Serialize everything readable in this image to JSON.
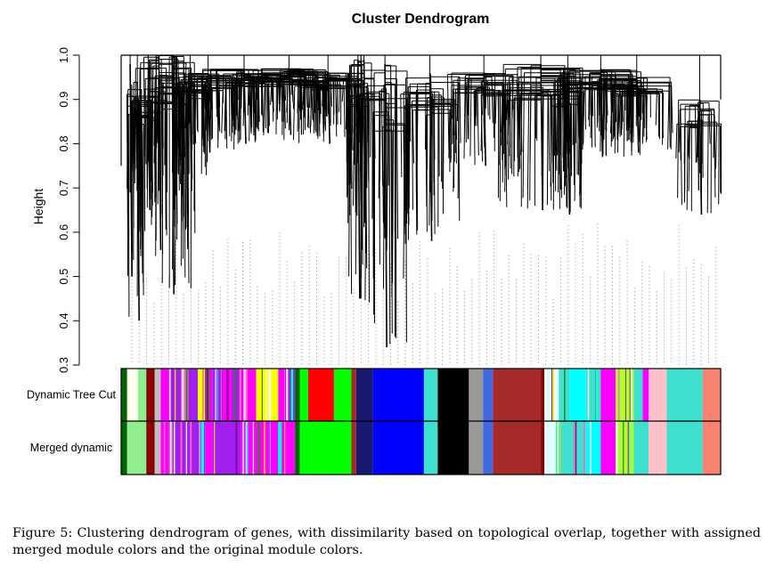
{
  "chart_data": {
    "type": "dendrogram",
    "title": "Cluster Dendrogram",
    "ylabel": "Height",
    "ylim": [
      0.3,
      1.0
    ],
    "yticks": [
      "0.3",
      "0.4",
      "0.5",
      "0.6",
      "0.7",
      "0.8",
      "0.9",
      "1.0"
    ],
    "branches": [
      {
        "center": 0.015,
        "top": 0.98,
        "bottom": 0.5,
        "fan": 0
      },
      {
        "center": 0.027,
        "top": 0.94,
        "bottom": 0.4,
        "fan": 1
      },
      {
        "center": 0.045,
        "top": 0.92,
        "bottom": 0.65,
        "fan": 2
      },
      {
        "center": 0.063,
        "top": 1.0,
        "bottom": 0.56,
        "fan": 3
      },
      {
        "center": 0.085,
        "top": 1.0,
        "bottom": 0.46,
        "fan": 3
      },
      {
        "center": 0.115,
        "top": 0.96,
        "bottom": 0.72,
        "fan": 2
      },
      {
        "center": 0.145,
        "top": 0.96,
        "bottom": 0.78,
        "fan": 4
      },
      {
        "center": 0.205,
        "top": 0.97,
        "bottom": 0.8,
        "fan": 6
      },
      {
        "center": 0.28,
        "top": 0.97,
        "bottom": 0.82,
        "fan": 6
      },
      {
        "center": 0.345,
        "top": 0.96,
        "bottom": 0.8,
        "fan": 5
      },
      {
        "center": 0.395,
        "top": 0.99,
        "bottom": 0.45,
        "fan": 1
      },
      {
        "center": 0.44,
        "top": 0.98,
        "bottom": 0.34,
        "fan": 3
      },
      {
        "center": 0.515,
        "top": 0.96,
        "bottom": 0.58,
        "fan": 4
      },
      {
        "center": 0.605,
        "top": 0.96,
        "bottom": 0.75,
        "fan": 5
      },
      {
        "center": 0.7,
        "top": 0.98,
        "bottom": 0.65,
        "fan": 6
      },
      {
        "center": 0.8,
        "top": 0.97,
        "bottom": 0.77,
        "fan": 6
      },
      {
        "center": 0.86,
        "top": 0.95,
        "bottom": 0.78,
        "fan": 5
      },
      {
        "center": 0.965,
        "top": 0.9,
        "bottom": 0.64,
        "fan": 3
      },
      {
        "center": 0.745,
        "top": 0.96,
        "bottom": 0.64,
        "fan": 2
      },
      {
        "center": 0.405,
        "top": 0.99,
        "bottom": 0.62,
        "fan": 2
      }
    ],
    "color_rows": [
      {
        "label": "Dynamic Tree Cut",
        "segments": [
          [
            0.0,
            0.01,
            "#006400"
          ],
          [
            0.01,
            0.028,
            "#fffff0"
          ],
          [
            0.028,
            0.042,
            "#90ee90"
          ],
          [
            0.042,
            0.056,
            "#8b0000"
          ],
          [
            0.056,
            0.066,
            "#bebebe"
          ],
          [
            0.066,
            0.08,
            "#ff00ff"
          ],
          [
            0.08,
            0.1,
            "#a020f0"
          ],
          [
            0.1,
            0.112,
            "#ff69b4"
          ],
          [
            0.112,
            0.128,
            "#a020f0"
          ],
          [
            0.128,
            0.14,
            "#ffff00"
          ],
          [
            0.14,
            0.152,
            "#ff00ff"
          ],
          [
            0.152,
            0.17,
            "#a020f0"
          ],
          [
            0.17,
            0.185,
            "#ff00ff"
          ],
          [
            0.185,
            0.2,
            "#a020f0"
          ],
          [
            0.2,
            0.225,
            "#ff00ff"
          ],
          [
            0.225,
            0.262,
            "#ffff00"
          ],
          [
            0.262,
            0.272,
            "#ff00ff"
          ],
          [
            0.272,
            0.29,
            "#a020f0"
          ],
          [
            0.29,
            0.298,
            "#006400"
          ],
          [
            0.298,
            0.312,
            "#00ff00"
          ],
          [
            0.312,
            0.355,
            "#ff0000"
          ],
          [
            0.355,
            0.384,
            "#00ff00"
          ],
          [
            0.384,
            0.392,
            "#a52a2a"
          ],
          [
            0.392,
            0.42,
            "#191970"
          ],
          [
            0.42,
            0.505,
            "#0000ff"
          ],
          [
            0.505,
            0.528,
            "#40e0d0"
          ],
          [
            0.528,
            0.58,
            "#000000"
          ],
          [
            0.58,
            0.604,
            "#999999"
          ],
          [
            0.604,
            0.62,
            "#4169e1"
          ],
          [
            0.62,
            0.7,
            "#a52a2a"
          ],
          [
            0.7,
            0.706,
            "#8b0000"
          ],
          [
            0.706,
            0.73,
            "#e0ffff"
          ],
          [
            0.73,
            0.748,
            "#40e0d0"
          ],
          [
            0.748,
            0.775,
            "#00ffff"
          ],
          [
            0.775,
            0.8,
            "#40e0d0"
          ],
          [
            0.8,
            0.825,
            "#ff00ff"
          ],
          [
            0.825,
            0.855,
            "#adff2f"
          ],
          [
            0.855,
            0.87,
            "#40e0d0"
          ],
          [
            0.87,
            0.88,
            "#ff00ff"
          ],
          [
            0.88,
            0.91,
            "#ffc0cb"
          ],
          [
            0.91,
            0.97,
            "#40e0d0"
          ],
          [
            0.97,
            1.0,
            "#fa8072"
          ]
        ]
      },
      {
        "label": "Merged dynamic",
        "segments": [
          [
            0.0,
            0.01,
            "#006400"
          ],
          [
            0.01,
            0.042,
            "#90ee90"
          ],
          [
            0.042,
            0.056,
            "#8b0000"
          ],
          [
            0.056,
            0.066,
            "#bebebe"
          ],
          [
            0.066,
            0.08,
            "#ff00ff"
          ],
          [
            0.08,
            0.14,
            "#a020f0"
          ],
          [
            0.14,
            0.152,
            "#ff00ff"
          ],
          [
            0.152,
            0.2,
            "#a020f0"
          ],
          [
            0.2,
            0.29,
            "#ff00ff"
          ],
          [
            0.29,
            0.298,
            "#006400"
          ],
          [
            0.298,
            0.384,
            "#00ff00"
          ],
          [
            0.384,
            0.392,
            "#a52a2a"
          ],
          [
            0.392,
            0.42,
            "#191970"
          ],
          [
            0.42,
            0.505,
            "#0000ff"
          ],
          [
            0.505,
            0.528,
            "#40e0d0"
          ],
          [
            0.528,
            0.58,
            "#000000"
          ],
          [
            0.58,
            0.604,
            "#999999"
          ],
          [
            0.604,
            0.62,
            "#4169e1"
          ],
          [
            0.62,
            0.7,
            "#a52a2a"
          ],
          [
            0.7,
            0.706,
            "#8b0000"
          ],
          [
            0.706,
            0.73,
            "#e0ffff"
          ],
          [
            0.73,
            0.775,
            "#40e0d0"
          ],
          [
            0.775,
            0.8,
            "#00ffff"
          ],
          [
            0.8,
            0.825,
            "#ff00ff"
          ],
          [
            0.825,
            0.855,
            "#adff2f"
          ],
          [
            0.855,
            0.88,
            "#40e0d0"
          ],
          [
            0.88,
            0.91,
            "#ffc0cb"
          ],
          [
            0.91,
            0.97,
            "#40e0d0"
          ],
          [
            0.97,
            1.0,
            "#fa8072"
          ]
        ]
      }
    ],
    "accent_stripes": [
      "#ff69b4",
      "#ffffff",
      "#8b008b",
      "#00ffff",
      "#228b22",
      "#ffd700"
    ]
  },
  "caption": "Figure 5: Clustering dendrogram of genes, with dissimilarity based on topological overlap, together with assigned merged module colors and the original module colors."
}
